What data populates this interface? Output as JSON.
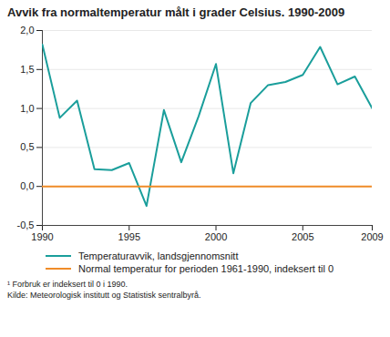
{
  "chart_data": {
    "type": "line",
    "title": "Avvik fra normaltemperatur målt i grader Celsius. 1990-2009",
    "x": [
      1990,
      1991,
      1992,
      1993,
      1994,
      1995,
      1996,
      1997,
      1998,
      1999,
      2000,
      2001,
      2002,
      2003,
      2004,
      2005,
      2006,
      2007,
      2008,
      2009
    ],
    "series": [
      {
        "name": "Temperaturavvik, landsgjennomsnitt",
        "color": "#1a9e9b",
        "values": [
          1.82,
          0.88,
          1.1,
          0.22,
          0.21,
          0.3,
          -0.25,
          0.98,
          0.31,
          0.9,
          1.57,
          0.17,
          1.07,
          1.3,
          1.34,
          1.43,
          1.79,
          1.31,
          1.41,
          1.0
        ]
      },
      {
        "name": "Normal temperatur for perioden 1961-1990, indeksert til 0",
        "color": "#f08c28",
        "values": [
          0,
          0,
          0,
          0,
          0,
          0,
          0,
          0,
          0,
          0,
          0,
          0,
          0,
          0,
          0,
          0,
          0,
          0,
          0,
          0
        ]
      }
    ],
    "xlim": [
      1990,
      2009
    ],
    "xticks": [
      1990,
      1995,
      2000,
      2005,
      2009
    ],
    "ylim": [
      -0.5,
      2.0
    ],
    "yticks": [
      {
        "value": -0.5,
        "label": "-0,5"
      },
      {
        "value": 0,
        "label": "0,0"
      },
      {
        "value": 0.5,
        "label": "0,5"
      },
      {
        "value": 1.0,
        "label": "1,0"
      },
      {
        "value": 1.5,
        "label": "1,5"
      },
      {
        "value": 2.0,
        "label": "2,0"
      }
    ],
    "grid": true,
    "legend": "bottom",
    "notes": [
      "¹ Forbruk er indeksert til 0 i 1990.",
      "Kilde: Meteorologisk institutt og Statistisk sentralbyrå."
    ]
  }
}
